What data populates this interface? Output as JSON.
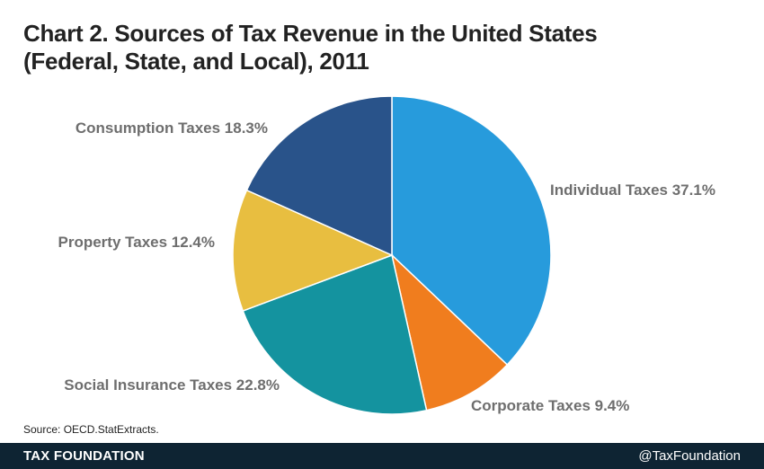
{
  "title": {
    "line1": "Chart 2. Sources of Tax Revenue in the United States",
    "line2": "(Federal, State, and Local), 2011"
  },
  "source": "Source: OECD.StatExtracts.",
  "footer": {
    "brand": "TAX FOUNDATION",
    "handle": "@TaxFoundation"
  },
  "chart_data": {
    "type": "pie",
    "slices": [
      {
        "label": "Individual Taxes 37.1%",
        "value": 37.1,
        "color": "#279bdc"
      },
      {
        "label": "Corporate Taxes 9.4%",
        "value": 9.4,
        "color": "#f07d1e"
      },
      {
        "label": "Social Insurance Taxes 22.8%",
        "value": 22.8,
        "color": "#14939f"
      },
      {
        "label": "Property Taxes 12.4%",
        "value": 12.4,
        "color": "#e8be40"
      },
      {
        "label": "Consumption Taxes 18.3%",
        "value": 18.3,
        "color": "#29538a"
      }
    ]
  }
}
